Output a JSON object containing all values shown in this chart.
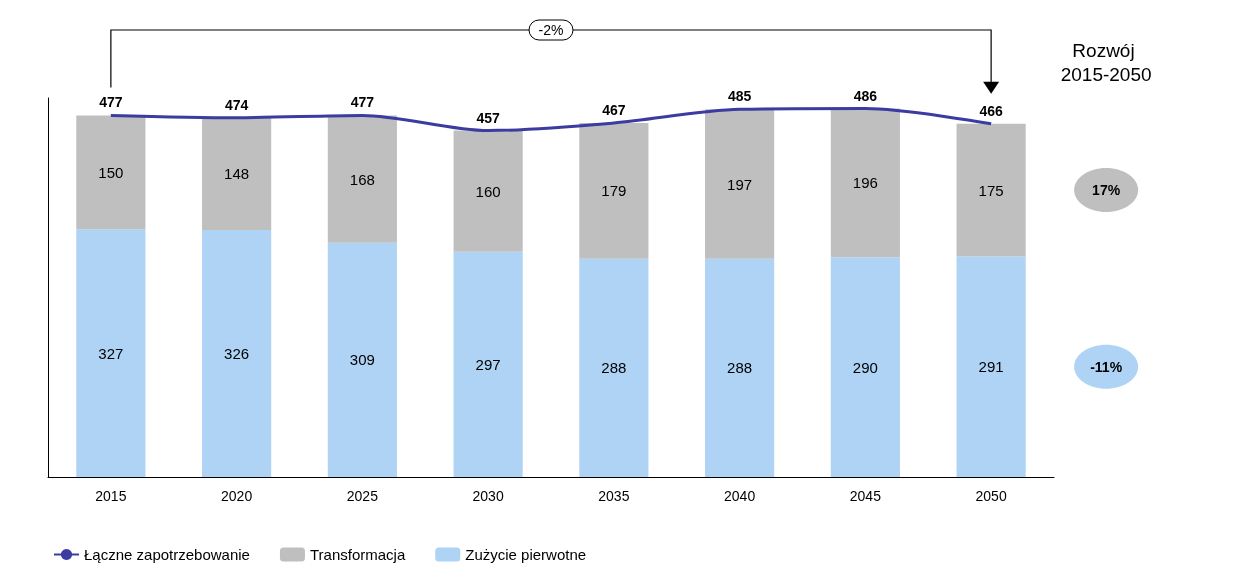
{
  "chart_data": {
    "type": "bar",
    "stacked": true,
    "data_labels": true,
    "legend": "bottom left",
    "grid": false,
    "categories": [
      "2015",
      "2020",
      "2025",
      "2030",
      "2035",
      "2040",
      "2045",
      "2050"
    ],
    "series": [
      {
        "name": "Zużycie pierwotne",
        "color": "#aed3f5",
        "values": [
          327,
          326,
          309,
          297,
          288,
          288,
          290,
          291
        ]
      },
      {
        "name": "Transformacja",
        "color": "#bfbfbf",
        "values": [
          150,
          148,
          168,
          160,
          179,
          197,
          196,
          175
        ]
      },
      {
        "name": "Łączne zapotrzebowanie",
        "type": "line",
        "color": "#3c3ca0",
        "marker": "none",
        "values": [
          477,
          474,
          477,
          457,
          467,
          485,
          486,
          466
        ]
      }
    ],
    "annotations": [
      "-2%",
      "Rozwój 2015-2050",
      "17%",
      "-11%"
    ]
  }
}
